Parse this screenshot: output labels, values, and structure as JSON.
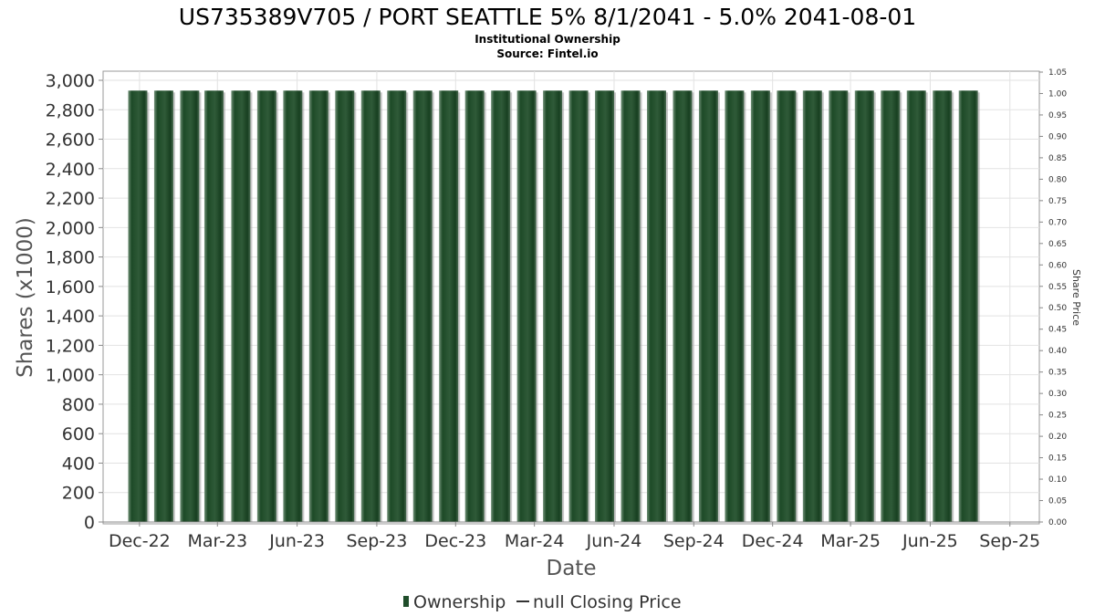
{
  "chart_data": {
    "type": "bar",
    "title": "US735389V705 / PORT SEATTLE 5% 8/1/2041 - 5.0% 2041-08-01",
    "subtitle_lines": [
      "Institutional Ownership",
      "Source: Fintel.io"
    ],
    "xlabel": "Date",
    "ylabel": "Shares (x1000)",
    "ylabel_right": "Share Price",
    "ylim": [
      0,
      3000
    ],
    "ylim_right": [
      0,
      1.05
    ],
    "yticks": [
      "0",
      "200",
      "400",
      "600",
      "800",
      "1,000",
      "1,200",
      "1,400",
      "1,600",
      "1,800",
      "2,000",
      "2,200",
      "2,400",
      "2,600",
      "2,800",
      "3,000"
    ],
    "yticks_right": [
      "0.00",
      "0.05",
      "0.10",
      "0.15",
      "0.20",
      "0.25",
      "0.30",
      "0.35",
      "0.40",
      "0.45",
      "0.50",
      "0.55",
      "0.60",
      "0.65",
      "0.70",
      "0.75",
      "0.80",
      "0.85",
      "0.90",
      "0.95",
      "1.00",
      "1.05"
    ],
    "xticks": [
      "Dec-22",
      "Mar-23",
      "Jun-23",
      "Sep-23",
      "Dec-23",
      "Mar-24",
      "Jun-24",
      "Sep-24",
      "Dec-24",
      "Mar-25",
      "Jun-25",
      "Sep-25"
    ],
    "x_range": [
      "2022-10-20",
      "2025-10-05"
    ],
    "grid": true,
    "legend_position": "bottom",
    "series": [
      {
        "name": "Ownership",
        "type": "bar",
        "color": "#1f4d2a",
        "x": [
          "2022-11-29",
          "2022-12-29",
          "2023-01-28",
          "2023-02-25",
          "2023-03-28",
          "2023-04-27",
          "2023-05-27",
          "2023-06-26",
          "2023-07-26",
          "2023-08-25",
          "2023-09-24",
          "2023-10-24",
          "2023-11-23",
          "2023-12-23",
          "2024-01-22",
          "2024-02-21",
          "2024-03-22",
          "2024-04-21",
          "2024-05-21",
          "2024-06-20",
          "2024-07-20",
          "2024-08-19",
          "2024-09-18",
          "2024-10-18",
          "2024-11-17",
          "2024-12-17",
          "2025-01-16",
          "2025-02-15",
          "2025-03-17",
          "2025-04-16",
          "2025-05-16",
          "2025-06-15",
          "2025-07-15"
        ],
        "values": [
          2930,
          2930,
          2930,
          2930,
          2930,
          2930,
          2930,
          2930,
          2930,
          2930,
          2930,
          2930,
          2930,
          2930,
          2930,
          2930,
          2930,
          2930,
          2930,
          2930,
          2930,
          2930,
          2930,
          2930,
          2930,
          2930,
          2930,
          2930,
          2930,
          2930,
          2930,
          2930,
          2930
        ]
      },
      {
        "name": "null Closing Price",
        "type": "line",
        "color": "#333333",
        "x": [],
        "values": []
      }
    ]
  }
}
